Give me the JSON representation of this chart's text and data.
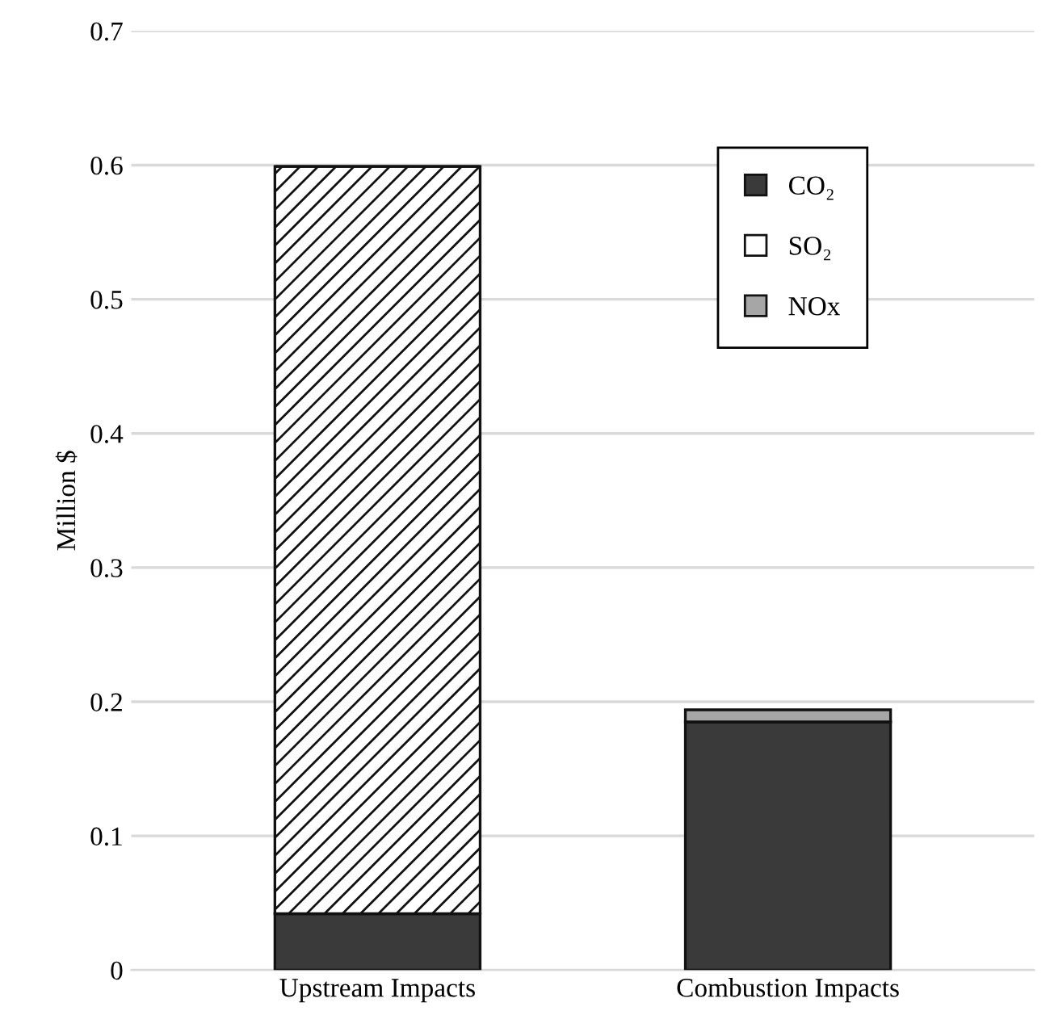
{
  "chart_data": {
    "type": "bar",
    "stacked": true,
    "ylabel": "Million $",
    "categories": [
      "Upstream Impacts",
      "Combustion Impacts"
    ],
    "series": [
      {
        "name": "CO₂",
        "color": "#3a3a3a",
        "values": [
          0.042,
          0.185
        ]
      },
      {
        "name": "SO₂",
        "color": "#ffffff",
        "values": [
          0.557,
          0
        ]
      },
      {
        "name": "NOx",
        "color": "#a6a6a6",
        "values": [
          null,
          0.009
        ]
      }
    ],
    "ylim": [
      0,
      0.7
    ],
    "yticks": [
      0,
      0.1,
      0.2,
      0.3,
      0.4,
      0.5,
      0.6,
      0.7
    ],
    "grid": "y",
    "legend": "top right"
  }
}
